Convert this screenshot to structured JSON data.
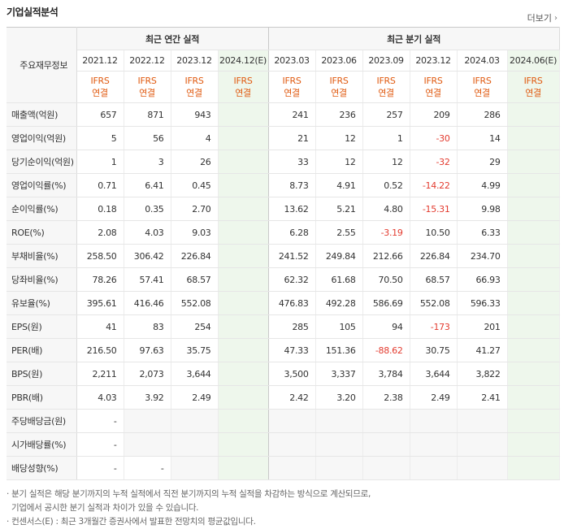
{
  "title": "기업실적분석",
  "more_label": "더보기",
  "header": {
    "row_label": "주요재무정보",
    "annual_group": "최근 연간 실적",
    "quarter_group": "최근 분기 실적",
    "annual_periods": [
      "2021.12",
      "2022.12",
      "2023.12",
      "2024.12(E)"
    ],
    "quarter_periods": [
      "2023.03",
      "2023.06",
      "2023.09",
      "2023.12",
      "2024.03",
      "2024.06(E)"
    ],
    "ifrs_top": "IFRS",
    "ifrs_bottom": "연결"
  },
  "rows": [
    {
      "label": "매출액(억원)",
      "annual": [
        "657",
        "871",
        "943",
        ""
      ],
      "quarter": [
        "241",
        "236",
        "257",
        "209",
        "286",
        ""
      ]
    },
    {
      "label": "영업이익(억원)",
      "annual": [
        "5",
        "56",
        "4",
        ""
      ],
      "quarter": [
        "21",
        "12",
        "1",
        "-30",
        "14",
        ""
      ]
    },
    {
      "label": "당기순이익(억원)",
      "annual": [
        "1",
        "3",
        "26",
        ""
      ],
      "quarter": [
        "33",
        "12",
        "12",
        "-32",
        "29",
        ""
      ]
    },
    {
      "label": "영업이익률(%)",
      "annual": [
        "0.71",
        "6.41",
        "0.45",
        ""
      ],
      "quarter": [
        "8.73",
        "4.91",
        "0.52",
        "-14.22",
        "4.99",
        ""
      ]
    },
    {
      "label": "순이익률(%)",
      "annual": [
        "0.18",
        "0.35",
        "2.70",
        ""
      ],
      "quarter": [
        "13.62",
        "5.21",
        "4.80",
        "-15.31",
        "9.98",
        ""
      ]
    },
    {
      "label": "ROE(%)",
      "annual": [
        "2.08",
        "4.03",
        "9.03",
        ""
      ],
      "quarter": [
        "6.28",
        "2.55",
        "-3.19",
        "10.50",
        "6.33",
        ""
      ]
    },
    {
      "label": "부채비율(%)",
      "annual": [
        "258.50",
        "306.42",
        "226.84",
        ""
      ],
      "quarter": [
        "241.52",
        "249.84",
        "212.66",
        "226.84",
        "234.70",
        ""
      ]
    },
    {
      "label": "당좌비율(%)",
      "annual": [
        "78.26",
        "57.41",
        "68.57",
        ""
      ],
      "quarter": [
        "62.32",
        "61.68",
        "70.50",
        "68.57",
        "66.93",
        ""
      ]
    },
    {
      "label": "유보율(%)",
      "annual": [
        "395.61",
        "416.46",
        "552.08",
        ""
      ],
      "quarter": [
        "476.83",
        "492.28",
        "586.69",
        "552.08",
        "596.33",
        ""
      ]
    },
    {
      "label": "EPS(원)",
      "annual": [
        "41",
        "83",
        "254",
        ""
      ],
      "quarter": [
        "285",
        "105",
        "94",
        "-173",
        "201",
        ""
      ]
    },
    {
      "label": "PER(배)",
      "annual": [
        "216.50",
        "97.63",
        "35.75",
        ""
      ],
      "quarter": [
        "47.33",
        "151.36",
        "-88.62",
        "30.75",
        "41.27",
        ""
      ]
    },
    {
      "label": "BPS(원)",
      "annual": [
        "2,211",
        "2,073",
        "3,644",
        ""
      ],
      "quarter": [
        "3,500",
        "3,337",
        "3,784",
        "3,644",
        "3,822",
        ""
      ]
    },
    {
      "label": "PBR(배)",
      "annual": [
        "4.03",
        "3.92",
        "2.49",
        ""
      ],
      "quarter": [
        "2.42",
        "3.20",
        "2.38",
        "2.49",
        "2.41",
        ""
      ]
    },
    {
      "label": "주당배당금(원)",
      "annual": [
        "-",
        "",
        "",
        ""
      ],
      "quarter": [
        "",
        "",
        "",
        "",
        "",
        ""
      ]
    },
    {
      "label": "시가배당률(%)",
      "annual": [
        "-",
        "",
        "",
        ""
      ],
      "quarter": [
        "",
        "",
        "",
        "",
        "",
        ""
      ]
    },
    {
      "label": "배당성향(%)",
      "annual": [
        "-",
        "-",
        "",
        ""
      ],
      "quarter": [
        "",
        "",
        "",
        "",
        "",
        ""
      ]
    }
  ],
  "notes": [
    "· 분기 실적은 해당 분기까지의 누적 실적에서 직전 분기까지의 누적 실적을 차감하는 방식으로 계산되므로,",
    "  기업에서 공시한 분기 실적과 차이가 있을 수 있습니다.",
    "· 컨센서스(E) : 최근 3개월간 증권사에서 발표한 전망치의 평균값입니다."
  ],
  "colors": {
    "ifrs": "#e05a10",
    "negative": "#e33b2f",
    "estimate_bg": "#eef7ec",
    "header_bg": "#f7f7f7"
  }
}
